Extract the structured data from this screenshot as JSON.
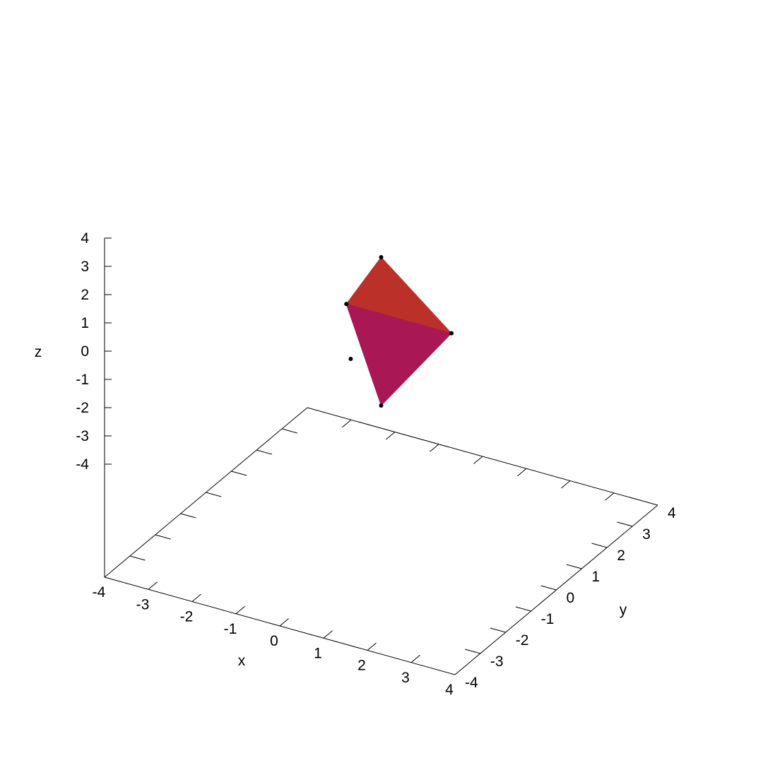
{
  "chart_data": {
    "type": "scatter",
    "subtype": "3d-surface",
    "title": "",
    "xlabel": "x",
    "ylabel": "y",
    "zlabel": "z",
    "xlim": [
      -4,
      4
    ],
    "ylim": [
      -4,
      4
    ],
    "zlim": [
      -4,
      4
    ],
    "x_ticks": [
      "-4",
      "-3",
      "-2",
      "-1",
      "0",
      "1",
      "2",
      "3",
      "4"
    ],
    "y_ticks": [
      "-4",
      "-3",
      "-2",
      "-1",
      "0",
      "1",
      "2",
      "3",
      "4"
    ],
    "z_ticks": [
      "-4",
      "-3",
      "-2",
      "-1",
      "0",
      "1",
      "2",
      "3",
      "4"
    ],
    "grid": false,
    "legend": "none",
    "points": [
      {
        "x": 0,
        "y": 0,
        "z": 2.7
      },
      {
        "x": -1.2,
        "y": 0.7,
        "z": 0.9
      },
      {
        "x": 1.2,
        "y": 0.7,
        "z": 0.9
      },
      {
        "x": 0,
        "y": -1.2,
        "z": 0.9
      },
      {
        "x": 0,
        "y": 0,
        "z": -0.8
      }
    ],
    "faces": [
      {
        "vertices": [
          0,
          1,
          2
        ],
        "color": "#bb3129"
      },
      {
        "vertices": [
          1,
          2,
          4
        ],
        "color": "#a91754"
      }
    ],
    "marker_color": "#000000",
    "axis_color": "#000000"
  }
}
